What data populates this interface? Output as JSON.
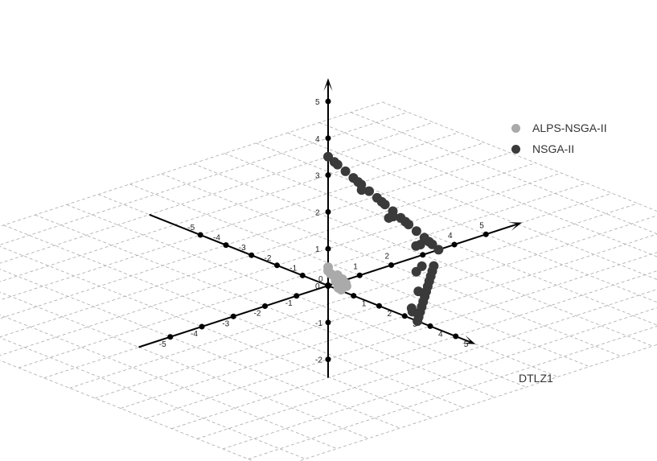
{
  "chart_data": {
    "type": "scatter",
    "projection": "3d",
    "caption": "DTLZ1",
    "axes": {
      "x": {
        "range": [
          -5,
          5
        ],
        "ticks": [
          -5,
          -4,
          -3,
          -2,
          -1,
          1,
          2,
          3,
          4,
          5
        ]
      },
      "y": {
        "range": [
          -5,
          5
        ],
        "ticks": [
          -5,
          -4,
          -3,
          -2,
          -1,
          1,
          2,
          3,
          4,
          5
        ]
      },
      "z": {
        "range": [
          -2,
          5
        ],
        "ticks": [
          -2,
          -1,
          0,
          1,
          2,
          3,
          4,
          5
        ]
      }
    },
    "origin_label": "0",
    "grid": true,
    "legend_position": "top-right",
    "series": [
      {
        "name": "ALPS-NSGA-II",
        "color": "#aaaaaa",
        "points": [
          [
            0.0,
            0.0,
            0.5
          ],
          [
            0.0,
            0.0,
            0.4
          ],
          [
            0.1,
            0.0,
            0.35
          ],
          [
            0.3,
            0.0,
            0.2
          ],
          [
            0.4,
            0.0,
            0.05
          ],
          [
            0.45,
            0.05,
            0.0
          ],
          [
            0.2,
            0.1,
            0.2
          ],
          [
            0.25,
            0.2,
            0.05
          ],
          [
            0.35,
            0.3,
            0.0
          ],
          [
            0.1,
            0.2,
            0.2
          ],
          [
            0.15,
            0.3,
            0.05
          ],
          [
            0.2,
            0.25,
            0.1
          ],
          [
            0.0,
            0.45,
            0.05
          ],
          [
            0.05,
            0.35,
            0.1
          ],
          [
            0.2,
            0.4,
            0.0
          ],
          [
            0.3,
            0.1,
            0.1
          ],
          [
            0.0,
            0.3,
            0.2
          ],
          [
            0.15,
            0.05,
            0.3
          ]
        ]
      },
      {
        "name": "NSGA-II",
        "color": "#3a3a3a",
        "points": [
          [
            0.0,
            0.0,
            3.5
          ],
          [
            0.0,
            0.3,
            3.2
          ],
          [
            0.0,
            0.55,
            2.95
          ],
          [
            0.0,
            0.8,
            2.7
          ],
          [
            0.0,
            1.05,
            2.45
          ],
          [
            0.0,
            1.3,
            2.2
          ],
          [
            0.0,
            1.55,
            1.95
          ],
          [
            0.0,
            1.8,
            1.7
          ],
          [
            0.0,
            2.05,
            1.45
          ],
          [
            0.0,
            2.3,
            1.2
          ],
          [
            0.0,
            2.55,
            0.95
          ],
          [
            0.0,
            2.8,
            0.7
          ],
          [
            0.0,
            3.05,
            0.45
          ],
          [
            0.0,
            3.3,
            0.2
          ],
          [
            0.0,
            3.5,
            0.0
          ],
          [
            0.0,
            0.2,
            3.3
          ],
          [
            0.0,
            0.95,
            2.55
          ],
          [
            0.0,
            1.7,
            1.8
          ],
          [
            0.0,
            2.45,
            1.05
          ],
          [
            0.0,
            3.2,
            0.3
          ],
          [
            0.2,
            0.9,
            2.4
          ],
          [
            0.4,
            1.6,
            1.5
          ],
          [
            0.6,
            2.3,
            0.6
          ],
          [
            0.2,
            1.9,
            1.4
          ],
          [
            0.4,
            2.6,
            0.5
          ],
          [
            3.5,
            0.0,
            0.0
          ],
          [
            3.3,
            0.2,
            0.0
          ],
          [
            3.05,
            0.45,
            0.0
          ],
          [
            2.8,
            0.7,
            0.0
          ],
          [
            2.55,
            0.95,
            0.0
          ],
          [
            2.3,
            1.2,
            0.0
          ],
          [
            2.05,
            1.45,
            0.0
          ],
          [
            1.8,
            1.7,
            0.0
          ],
          [
            1.55,
            1.95,
            0.0
          ],
          [
            1.3,
            2.2,
            0.0
          ],
          [
            1.05,
            2.45,
            0.0
          ],
          [
            0.8,
            2.7,
            0.0
          ],
          [
            3.3,
            0.0,
            0.2
          ],
          [
            2.3,
            1.0,
            0.2
          ],
          [
            1.6,
            1.5,
            0.4
          ],
          [
            1.2,
            2.0,
            0.3
          ],
          [
            2.9,
            0.3,
            0.1
          ]
        ]
      }
    ]
  }
}
